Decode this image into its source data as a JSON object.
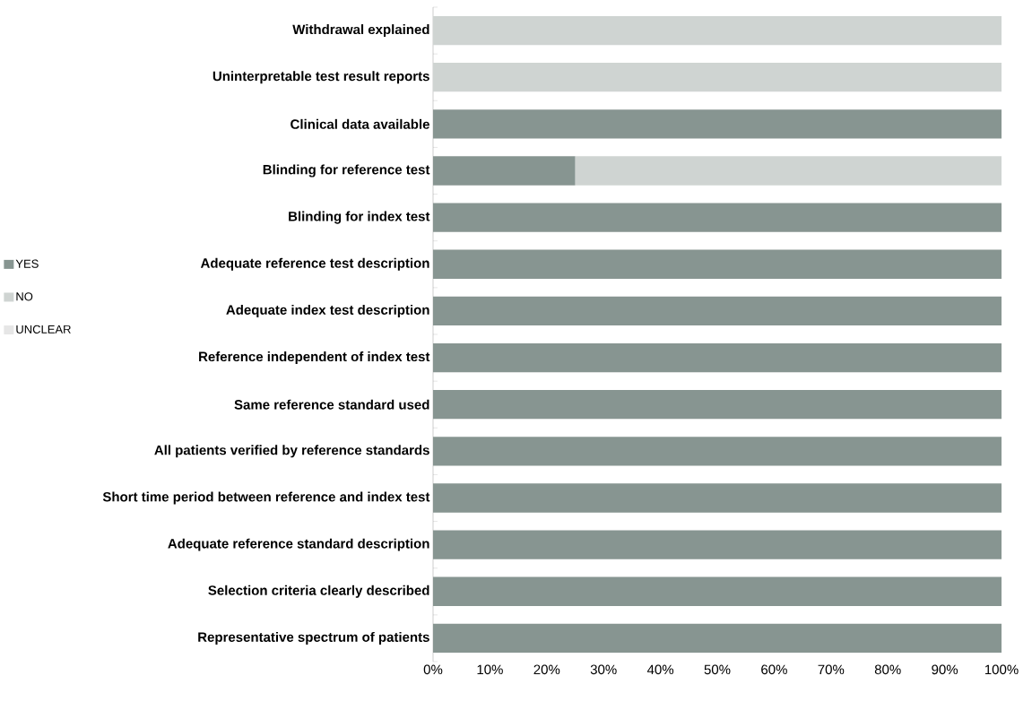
{
  "chart_data": {
    "type": "bar",
    "orientation": "horizontal",
    "stacked": true,
    "categories": [
      "Withdrawal explained",
      "Uninterpretable test result reports",
      "Clinical data available",
      "Blinding for reference test",
      "Blinding for index test",
      "Adequate reference test  description",
      "Adequate index test description",
      "Reference independent of index test",
      "Same reference standard used",
      "All  patients verified by reference standards",
      "Short time period between reference and index test",
      "Adequate reference standard description",
      "Selection criteria clearly described",
      "Representative spectrum of patients"
    ],
    "series": [
      {
        "name": "YES",
        "color": "#879591",
        "values": [
          0,
          0,
          100,
          25,
          100,
          100,
          100,
          100,
          100,
          100,
          100,
          100,
          100,
          100
        ]
      },
      {
        "name": "NO",
        "color": "#cfd4d2",
        "values": [
          100,
          100,
          0,
          75,
          0,
          0,
          0,
          0,
          0,
          0,
          0,
          0,
          0,
          0
        ]
      },
      {
        "name": "UNCLEAR",
        "color": "#e6e6e6",
        "values": [
          0,
          0,
          0,
          0,
          0,
          0,
          0,
          0,
          0,
          0,
          0,
          0,
          0,
          0
        ]
      }
    ],
    "xlim": [
      0,
      100
    ],
    "xticks": [
      {
        "value": 0,
        "label": "0%"
      },
      {
        "value": 10,
        "label": "10%"
      },
      {
        "value": 20,
        "label": "20%"
      },
      {
        "value": 30,
        "label": "30%"
      },
      {
        "value": 40,
        "label": "40%"
      },
      {
        "value": 50,
        "label": "50%"
      },
      {
        "value": 60,
        "label": "60%"
      },
      {
        "value": 70,
        "label": "70%"
      },
      {
        "value": 80,
        "label": "80%"
      },
      {
        "value": 90,
        "label": "90%"
      },
      {
        "value": 100,
        "label": "100%"
      }
    ],
    "legend": "left"
  }
}
